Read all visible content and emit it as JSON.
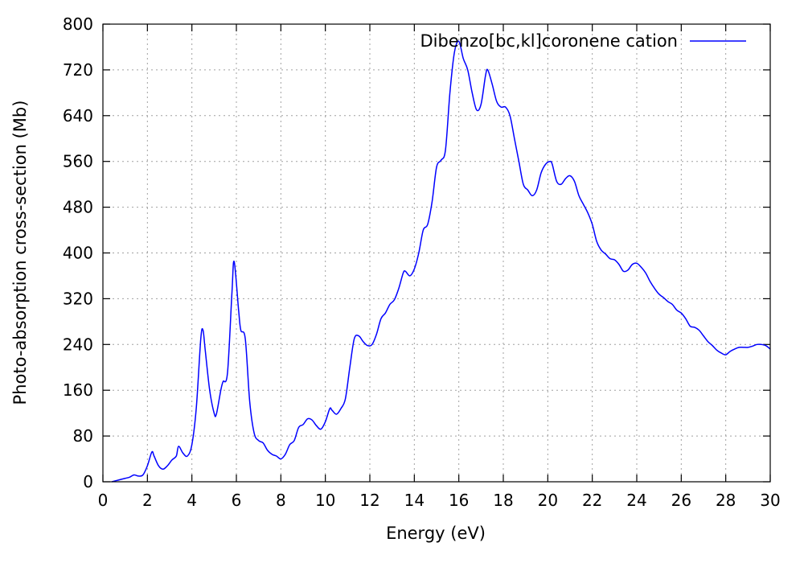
{
  "chart_data": {
    "type": "line",
    "xlabel": "Energy (eV)",
    "ylabel": "Photo-absorption cross-section (Mb)",
    "xlim": [
      0,
      30
    ],
    "ylim": [
      0,
      800
    ],
    "xticks": [
      0,
      2,
      4,
      6,
      8,
      10,
      12,
      14,
      16,
      18,
      20,
      22,
      24,
      26,
      28,
      30
    ],
    "yticks": [
      0,
      80,
      160,
      240,
      320,
      400,
      480,
      560,
      640,
      720,
      800
    ],
    "grid": true,
    "legend_position": "top-right",
    "series": [
      {
        "name": "Dibenzo[bc,kl]coronene cation",
        "color": "#0000ff",
        "x": [
          0.4,
          0.6,
          0.8,
          1.0,
          1.2,
          1.4,
          1.6,
          1.8,
          2.0,
          2.2,
          2.3,
          2.5,
          2.7,
          2.9,
          3.1,
          3.3,
          3.4,
          3.6,
          3.8,
          4.0,
          4.2,
          4.4,
          4.5,
          4.6,
          4.8,
          5.0,
          5.1,
          5.3,
          5.4,
          5.6,
          5.8,
          5.9,
          6.1,
          6.2,
          6.4,
          6.6,
          6.8,
          7.0,
          7.2,
          7.4,
          7.6,
          7.8,
          8.0,
          8.2,
          8.4,
          8.6,
          8.8,
          9.0,
          9.2,
          9.4,
          9.6,
          9.8,
          10.0,
          10.2,
          10.3,
          10.5,
          10.7,
          10.9,
          11.1,
          11.3,
          11.5,
          11.7,
          11.9,
          12.1,
          12.3,
          12.5,
          12.7,
          12.9,
          13.1,
          13.3,
          13.5,
          13.6,
          13.8,
          14.0,
          14.2,
          14.4,
          14.6,
          14.8,
          15.0,
          15.2,
          15.4,
          15.6,
          15.8,
          16.0,
          16.2,
          16.4,
          16.6,
          16.8,
          17.0,
          17.2,
          17.3,
          17.5,
          17.7,
          17.9,
          18.1,
          18.3,
          18.5,
          18.7,
          18.9,
          19.1,
          19.3,
          19.5,
          19.7,
          19.9,
          20.1,
          20.2,
          20.4,
          20.6,
          20.8,
          21.0,
          21.2,
          21.4,
          21.6,
          21.8,
          22.0,
          22.2,
          22.4,
          22.6,
          22.8,
          23.0,
          23.2,
          23.4,
          23.6,
          23.8,
          24.0,
          24.2,
          24.4,
          24.6,
          24.8,
          25.0,
          25.2,
          25.4,
          25.6,
          25.8,
          26.0,
          26.2,
          26.4,
          26.6,
          26.8,
          27.0,
          27.2,
          27.4,
          27.6,
          27.8,
          28.0,
          28.2,
          28.4,
          28.6,
          28.8,
          29.0,
          29.2,
          29.4,
          29.6,
          29.8,
          30.0
        ],
        "y": [
          0,
          2,
          4,
          6,
          8,
          12,
          10,
          12,
          28,
          52,
          45,
          28,
          22,
          28,
          38,
          45,
          62,
          50,
          45,
          65,
          130,
          250,
          265,
          230,
          160,
          120,
          118,
          160,
          175,
          190,
          330,
          385,
          300,
          265,
          250,
          140,
          85,
          72,
          68,
          55,
          48,
          45,
          40,
          48,
          65,
          72,
          95,
          100,
          110,
          108,
          98,
          92,
          105,
          128,
          125,
          118,
          128,
          145,
          200,
          250,
          255,
          245,
          238,
          240,
          258,
          285,
          295,
          310,
          318,
          338,
          365,
          368,
          360,
          372,
          400,
          440,
          450,
          490,
          550,
          562,
          580,
          680,
          750,
          770,
          740,
          720,
          680,
          650,
          660,
          710,
          720,
          695,
          665,
          655,
          655,
          640,
          600,
          560,
          520,
          510,
          500,
          510,
          540,
          555,
          560,
          555,
          525,
          520,
          530,
          535,
          525,
          500,
          485,
          470,
          450,
          420,
          405,
          398,
          390,
          388,
          380,
          368,
          370,
          380,
          382,
          375,
          365,
          350,
          338,
          328,
          322,
          315,
          310,
          300,
          295,
          285,
          272,
          270,
          265,
          255,
          245,
          238,
          230,
          225,
          222,
          228,
          232,
          235,
          235,
          235,
          237,
          240,
          240,
          238,
          232
        ]
      }
    ]
  }
}
